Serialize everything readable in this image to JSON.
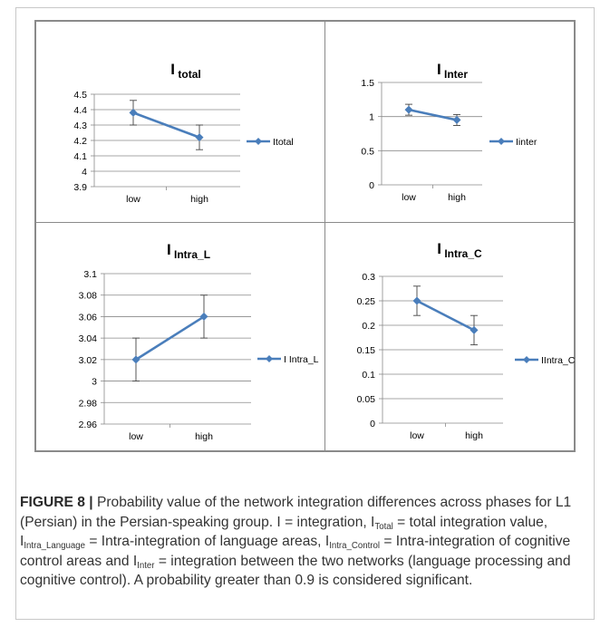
{
  "chart_data": [
    {
      "type": "line",
      "title": "I",
      "title_sub": "total",
      "categories": [
        "low",
        "high"
      ],
      "series": [
        {
          "name": "Itotal",
          "values": [
            4.38,
            4.22
          ],
          "error": [
            0.08,
            0.08
          ]
        }
      ],
      "ylim": [
        3.9,
        4.5
      ],
      "yticks": [
        3.9,
        4,
        4.1,
        4.2,
        4.3,
        4.4,
        4.5
      ],
      "ytick_labels": [
        "3.9",
        "4",
        "4.1",
        "4.2",
        "4.3",
        "4.4",
        "4.5"
      ],
      "grid": true,
      "legend": "right",
      "color": "#4a7ebb"
    },
    {
      "type": "line",
      "title": "I",
      "title_sub": "Inter",
      "categories": [
        "low",
        "high"
      ],
      "series": [
        {
          "name": "Iinter",
          "values": [
            1.1,
            0.95
          ],
          "error": [
            0.08,
            0.08
          ]
        }
      ],
      "ylim": [
        0,
        1.5
      ],
      "yticks": [
        0,
        0.5,
        1,
        1.5
      ],
      "ytick_labels": [
        "0",
        "0.5",
        "1",
        "1.5"
      ],
      "grid": true,
      "legend": "right",
      "color": "#4a7ebb"
    },
    {
      "type": "line",
      "title": "I",
      "title_sub": "Intra_L",
      "categories": [
        "low",
        "high"
      ],
      "series": [
        {
          "name": "I Intra_L",
          "values": [
            3.02,
            3.06
          ],
          "error": [
            0.02,
            0.02
          ]
        }
      ],
      "ylim": [
        2.96,
        3.1
      ],
      "yticks": [
        2.96,
        2.98,
        3,
        3.02,
        3.04,
        3.06,
        3.08,
        3.1
      ],
      "ytick_labels": [
        "2.96",
        "2.98",
        "3",
        "3.02",
        "3.04",
        "3.06",
        "3.08",
        "3.1"
      ],
      "grid": true,
      "legend": "right",
      "color": "#4a7ebb"
    },
    {
      "type": "line",
      "title": "I",
      "title_sub": "Intra_C",
      "categories": [
        "low",
        "high"
      ],
      "series": [
        {
          "name": "IIntra_C",
          "values": [
            0.25,
            0.19
          ],
          "error": [
            0.03,
            0.03
          ]
        }
      ],
      "ylim": [
        0,
        0.3
      ],
      "yticks": [
        0,
        0.05,
        0.1,
        0.15,
        0.2,
        0.25,
        0.3
      ],
      "ytick_labels": [
        "0",
        "0.05",
        "0.1",
        "0.15",
        "0.2",
        "0.25",
        "0.3"
      ],
      "grid": true,
      "legend": "right",
      "color": "#4a7ebb"
    }
  ],
  "caption": {
    "label": "FIGURE 8 |",
    "t1": " Probability value of the network integration differences across phases for L1 (Persian) in the Persian-speaking group. I = integration, ",
    "s1_main": "I",
    "s1_sub": "Total",
    "t2": " = total integration value, ",
    "s2_main": "I",
    "s2_sub": "Intra_Language",
    "t3": " = Intra-integration of language areas, ",
    "s3_main": "I",
    "s3_sub": "Intra_Control",
    "t4": " = Intra-integration of cognitive control areas and ",
    "s4_main": "I",
    "s4_sub": "Inter",
    "t5": " = integration between the two networks (language processing and cognitive control). A probability greater than 0.9 is considered significant."
  }
}
